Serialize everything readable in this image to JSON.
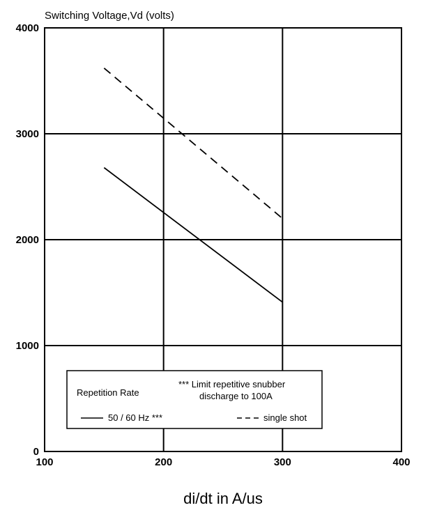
{
  "chart_data": {
    "type": "line",
    "ylabel": "Switching Voltage,Vd (volts)",
    "xlabel": "di/dt in A/us",
    "xlim": [
      100,
      400
    ],
    "ylim": [
      0,
      4000
    ],
    "x_ticks": [
      "100",
      "200",
      "300",
      "400"
    ],
    "y_ticks": [
      "0",
      "1000",
      "2000",
      "3000",
      "4000"
    ],
    "grid": true,
    "legend": {
      "placement": "bottom-left",
      "title": "Repetition Rate",
      "note_line1": "*** Limit repetitive snubber",
      "note_line2": "discharge to 100A"
    },
    "series": [
      {
        "name": "50 / 60 Hz ***",
        "style": "solid",
        "x": [
          150,
          300
        ],
        "y": [
          2680,
          1410
        ]
      },
      {
        "name": "single shot",
        "style": "dashed",
        "x": [
          150,
          300
        ],
        "y": [
          3620,
          2200
        ]
      }
    ]
  }
}
